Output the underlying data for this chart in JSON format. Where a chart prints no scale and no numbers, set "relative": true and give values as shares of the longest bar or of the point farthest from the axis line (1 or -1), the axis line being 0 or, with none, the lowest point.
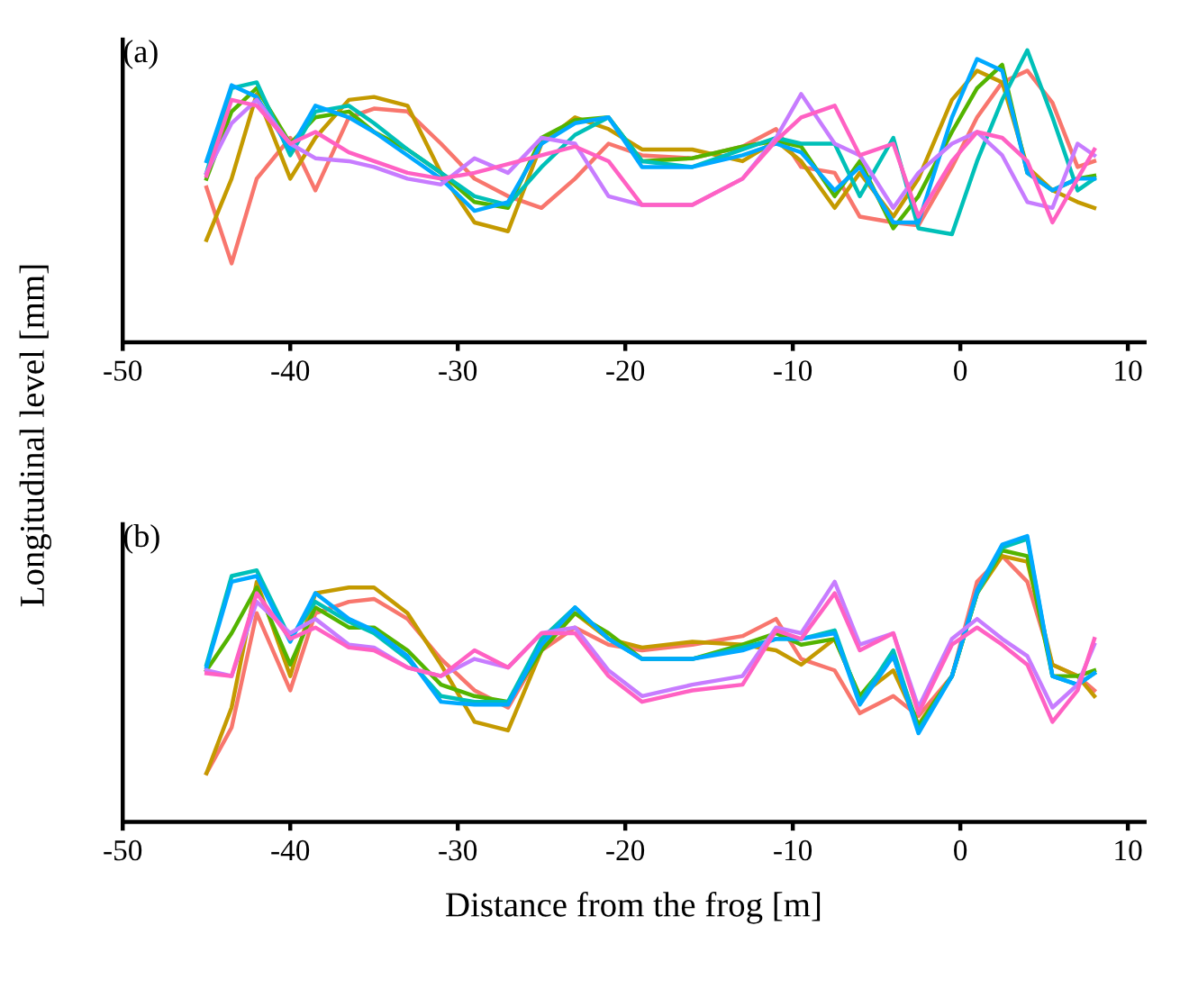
{
  "chart_data": [
    {
      "type": "line",
      "title": "(a)",
      "ylabel": "Longitudinal level [mm]",
      "relative": true,
      "xlim": [
        -50,
        11
      ],
      "xticks": [
        -50,
        -40,
        -30,
        -20,
        -10,
        0,
        10
      ],
      "tick_labels": "x",
      "grid": false,
      "legend": false,
      "line_style": "solid",
      "x": [
        -45,
        -43.5,
        -42,
        -40,
        -38.5,
        -36.5,
        -35,
        -33,
        -31,
        -29,
        -27,
        -25,
        -23,
        -21,
        -19,
        -16,
        -13,
        -11,
        -9.5,
        -7.5,
        -6,
        -4,
        -2.5,
        -0.5,
        1,
        2.5,
        4,
        5.5,
        7,
        8
      ],
      "series": [
        {
          "color": "#f8766d",
          "values": [
            0.53,
            0.27,
            0.56,
            0.7,
            0.52,
            0.77,
            0.8,
            0.79,
            0.68,
            0.56,
            0.5,
            0.46,
            0.56,
            0.68,
            0.64,
            0.63,
            0.67,
            0.73,
            0.6,
            0.58,
            0.43,
            0.41,
            0.4,
            0.6,
            0.77,
            0.89,
            0.93,
            0.82,
            0.6,
            0.62
          ]
        },
        {
          "color": "#c49a00",
          "values": [
            0.35,
            0.56,
            0.85,
            0.56,
            0.7,
            0.83,
            0.84,
            0.81,
            0.58,
            0.41,
            0.38,
            0.68,
            0.77,
            0.73,
            0.66,
            0.66,
            0.62,
            0.69,
            0.62,
            0.46,
            0.58,
            0.43,
            0.56,
            0.83,
            0.93,
            0.89,
            0.6,
            0.52,
            0.48,
            0.46
          ]
        },
        {
          "color": "#53b400",
          "values": [
            0.56,
            0.79,
            0.87,
            0.68,
            0.77,
            0.79,
            0.72,
            0.66,
            0.58,
            0.48,
            0.46,
            0.7,
            0.76,
            0.77,
            0.62,
            0.63,
            0.67,
            0.69,
            0.67,
            0.5,
            0.62,
            0.39,
            0.5,
            0.72,
            0.87,
            0.95,
            0.58,
            0.52,
            0.56,
            0.57
          ]
        },
        {
          "color": "#00c0b8",
          "values": [
            0.58,
            0.87,
            0.89,
            0.64,
            0.79,
            0.81,
            0.75,
            0.66,
            0.58,
            0.5,
            0.47,
            0.6,
            0.71,
            0.77,
            0.62,
            0.6,
            0.66,
            0.7,
            0.68,
            0.68,
            0.5,
            0.7,
            0.39,
            0.37,
            0.62,
            0.83,
            1.0,
            0.77,
            0.52,
            0.56
          ]
        },
        {
          "color": "#00a9ff",
          "values": [
            0.62,
            0.88,
            0.84,
            0.66,
            0.81,
            0.77,
            0.72,
            0.64,
            0.56,
            0.45,
            0.48,
            0.68,
            0.75,
            0.77,
            0.6,
            0.6,
            0.64,
            0.68,
            0.65,
            0.52,
            0.6,
            0.41,
            0.41,
            0.77,
            0.97,
            0.93,
            0.58,
            0.52,
            0.56,
            0.56
          ]
        },
        {
          "color": "#c77cff",
          "values": [
            0.58,
            0.75,
            0.83,
            0.68,
            0.63,
            0.62,
            0.6,
            0.56,
            0.54,
            0.63,
            0.58,
            0.7,
            0.68,
            0.5,
            0.47,
            0.47,
            0.56,
            0.7,
            0.85,
            0.68,
            0.64,
            0.46,
            0.58,
            0.68,
            0.72,
            0.64,
            0.48,
            0.46,
            0.68,
            0.64
          ]
        },
        {
          "color": "#ff61c3",
          "values": [
            0.57,
            0.83,
            0.81,
            0.68,
            0.72,
            0.65,
            0.62,
            0.58,
            0.56,
            0.58,
            0.61,
            0.64,
            0.67,
            0.62,
            0.47,
            0.47,
            0.56,
            0.69,
            0.77,
            0.81,
            0.64,
            0.68,
            0.43,
            0.62,
            0.72,
            0.7,
            0.62,
            0.41,
            0.56,
            0.66
          ]
        }
      ]
    },
    {
      "type": "line",
      "title": "(b)",
      "xlabel": "Distance from the frog [m]",
      "relative": true,
      "xlim": [
        -50,
        11
      ],
      "xticks": [
        -50,
        -40,
        -30,
        -20,
        -10,
        0,
        10
      ],
      "tick_labels": "x",
      "grid": false,
      "legend": false,
      "line_style": "solid",
      "x": [
        -45,
        -43.5,
        -42,
        -40,
        -38.5,
        -36.5,
        -35,
        -33,
        -31,
        -29,
        -27,
        -25,
        -23,
        -21,
        -19,
        -16,
        -13,
        -11,
        -9.5,
        -7.5,
        -6,
        -4,
        -2.5,
        -0.5,
        1,
        2.5,
        4,
        5.5,
        7,
        8
      ],
      "series": [
        {
          "color": "#f8766d",
          "values": [
            0.17,
            0.33,
            0.73,
            0.46,
            0.73,
            0.77,
            0.78,
            0.71,
            0.57,
            0.46,
            0.4,
            0.6,
            0.68,
            0.62,
            0.6,
            0.62,
            0.65,
            0.71,
            0.57,
            0.53,
            0.38,
            0.44,
            0.37,
            0.51,
            0.84,
            0.93,
            0.84,
            0.55,
            0.51,
            0.46
          ]
        },
        {
          "color": "#c49a00",
          "values": [
            0.17,
            0.4,
            0.84,
            0.51,
            0.8,
            0.82,
            0.82,
            0.73,
            0.55,
            0.35,
            0.32,
            0.6,
            0.73,
            0.64,
            0.61,
            0.63,
            0.62,
            0.6,
            0.55,
            0.64,
            0.44,
            0.53,
            0.34,
            0.51,
            0.8,
            0.93,
            0.91,
            0.55,
            0.51,
            0.44
          ]
        },
        {
          "color": "#53b400",
          "values": [
            0.53,
            0.66,
            0.82,
            0.55,
            0.75,
            0.68,
            0.68,
            0.6,
            0.48,
            0.44,
            0.42,
            0.6,
            0.73,
            0.66,
            0.57,
            0.57,
            0.62,
            0.66,
            0.62,
            0.64,
            0.44,
            0.58,
            0.335,
            0.51,
            0.8,
            0.95,
            0.93,
            0.51,
            0.51,
            0.53
          ]
        },
        {
          "color": "#00c0b8",
          "values": [
            0.55,
            0.86,
            0.88,
            0.64,
            0.77,
            0.7,
            0.66,
            0.57,
            0.44,
            0.42,
            0.42,
            0.64,
            0.75,
            0.64,
            0.57,
            0.57,
            0.61,
            0.64,
            0.64,
            0.67,
            0.42,
            0.6,
            0.32,
            0.51,
            0.8,
            0.96,
            0.99,
            0.51,
            0.48,
            0.52
          ]
        },
        {
          "color": "#00a9ff",
          "values": [
            0.54,
            0.84,
            0.86,
            0.63,
            0.8,
            0.71,
            0.67,
            0.58,
            0.42,
            0.41,
            0.41,
            0.62,
            0.75,
            0.64,
            0.57,
            0.57,
            0.6,
            0.64,
            0.64,
            0.66,
            0.41,
            0.58,
            0.31,
            0.51,
            0.81,
            0.97,
            1.0,
            0.51,
            0.48,
            0.52
          ]
        },
        {
          "color": "#c77cff",
          "values": [
            0.53,
            0.51,
            0.77,
            0.66,
            0.71,
            0.62,
            0.61,
            0.54,
            0.51,
            0.57,
            0.54,
            0.66,
            0.68,
            0.53,
            0.44,
            0.48,
            0.51,
            0.68,
            0.66,
            0.84,
            0.62,
            0.66,
            0.4,
            0.64,
            0.71,
            0.64,
            0.58,
            0.4,
            0.48,
            0.62
          ]
        },
        {
          "color": "#ff61c3",
          "values": [
            0.52,
            0.51,
            0.8,
            0.64,
            0.68,
            0.61,
            0.6,
            0.54,
            0.51,
            0.6,
            0.54,
            0.66,
            0.66,
            0.51,
            0.42,
            0.46,
            0.48,
            0.67,
            0.64,
            0.8,
            0.6,
            0.66,
            0.38,
            0.62,
            0.68,
            0.62,
            0.55,
            0.35,
            0.46,
            0.64
          ]
        }
      ]
    }
  ]
}
